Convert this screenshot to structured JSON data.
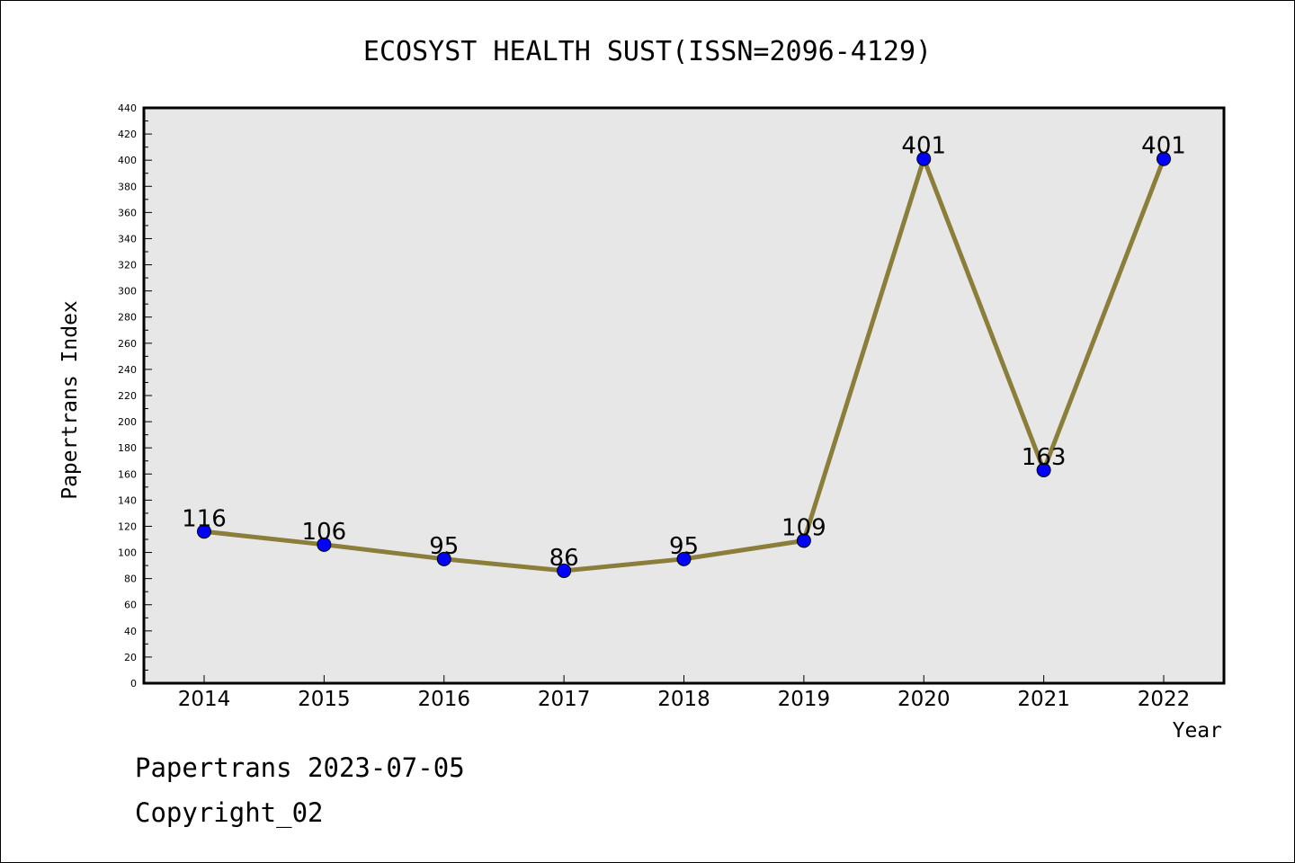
{
  "chart_data": {
    "type": "line",
    "title": "ECOSYST HEALTH SUST(ISSN=2096-4129)",
    "xlabel": "Year",
    "ylabel": "Papertrans Index",
    "categories": [
      "2014",
      "2015",
      "2016",
      "2017",
      "2018",
      "2019",
      "2020",
      "2021",
      "2022"
    ],
    "values": [
      116,
      106,
      95,
      86,
      95,
      109,
      401,
      163,
      401
    ],
    "ylim": [
      0,
      440
    ],
    "ytick_step": 20,
    "grid": false,
    "colors": {
      "line": "#8b7d3a",
      "marker": "#0000ff",
      "plot_bg": "#e7e7e7"
    }
  },
  "footer": {
    "line1": "Papertrans 2023-07-05",
    "line2": "Copyright_02"
  }
}
